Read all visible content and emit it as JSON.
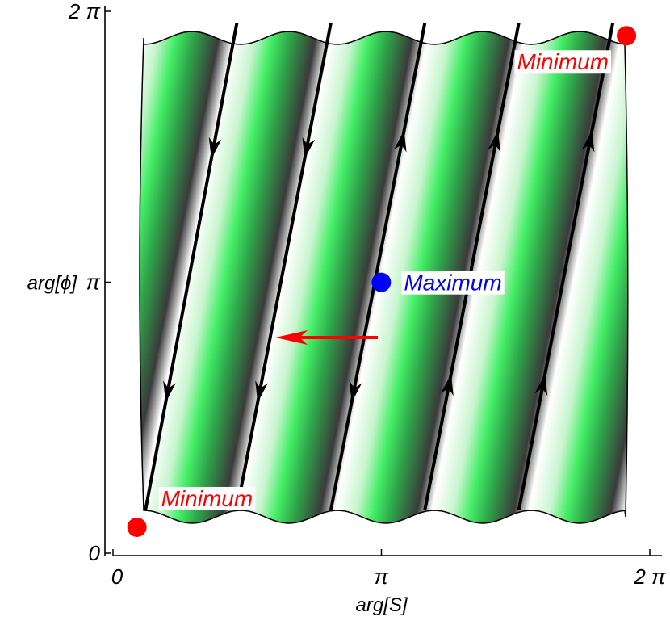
{
  "chart_data": {
    "type": "line",
    "title": "",
    "xlabel": "arg[S]",
    "ylabel": "arg[ϕ]",
    "xlim": [
      0,
      6.2832
    ],
    "ylim": [
      0,
      6.2832
    ],
    "x_ticks": [
      {
        "value": 0,
        "label": "0"
      },
      {
        "value": 3.1416,
        "label": "π"
      },
      {
        "value": 6.2832,
        "label": "2 π"
      }
    ],
    "y_ticks": [
      {
        "value": 0,
        "label": "0"
      },
      {
        "value": 3.1416,
        "label": "π"
      },
      {
        "value": 6.2832,
        "label": "2 π"
      }
    ],
    "grid": false,
    "colors": {
      "stripe_light": "#ffffff",
      "stripe_green": "#44ee66",
      "stripe_dark": "#3a3a3a",
      "trajectory": "#000000",
      "minimum": "#ff0000",
      "maximum": "#0000ff",
      "arrow": "#ff0000"
    },
    "trajectories": [
      {
        "x": [
          0.38,
          1.45
        ],
        "y": [
          0.5,
          6.15
        ],
        "direction": "down"
      },
      {
        "x": [
          1.45,
          2.55
        ],
        "y": [
          0.5,
          6.15
        ],
        "direction": "down"
      },
      {
        "x": [
          2.55,
          3.65
        ],
        "y": [
          0.5,
          6.15
        ],
        "direction": "mixed"
      },
      {
        "x": [
          3.65,
          4.75
        ],
        "y": [
          0.5,
          6.15
        ],
        "direction": "up"
      },
      {
        "x": [
          4.75,
          5.85
        ],
        "y": [
          0.5,
          6.15
        ],
        "direction": "up"
      }
    ],
    "points": [
      {
        "label": "Minimum",
        "x": 0.28,
        "y": 0.3,
        "color": "#ff0000"
      },
      {
        "label": "Minimum",
        "x": 6.01,
        "y": 6.0,
        "color": "#ff0000"
      },
      {
        "label": "Maximum",
        "x": 3.14,
        "y": 3.14,
        "color": "#0000ff"
      }
    ],
    "annotation_arrow": {
      "from": {
        "x": 3.1,
        "y": 2.5
      },
      "to": {
        "x": 1.9,
        "y": 2.5
      }
    }
  }
}
